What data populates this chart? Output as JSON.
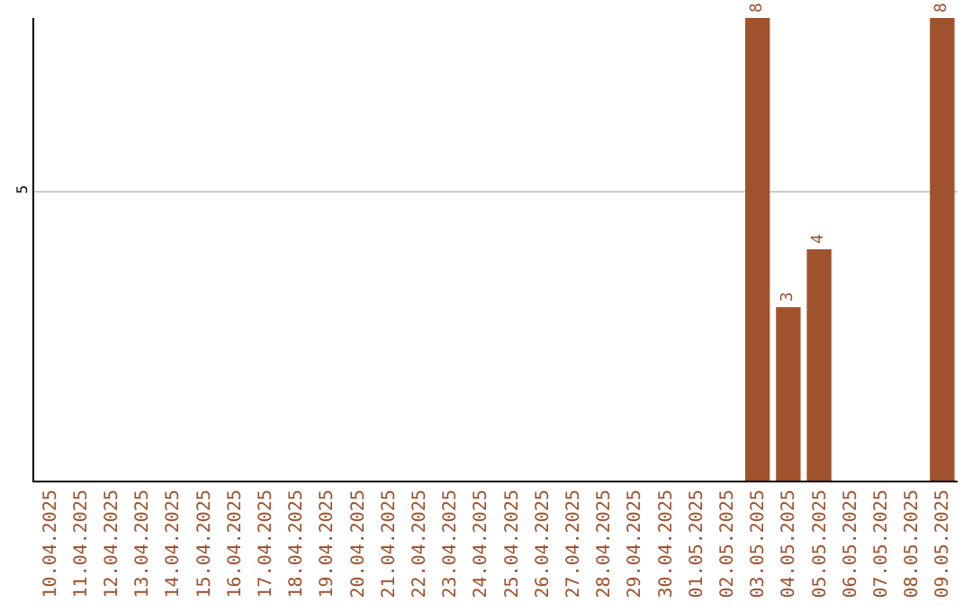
{
  "chart_data": {
    "type": "bar",
    "categories": [
      "10.04.2025",
      "11.04.2025",
      "12.04.2025",
      "13.04.2025",
      "14.04.2025",
      "15.04.2025",
      "16.04.2025",
      "17.04.2025",
      "18.04.2025",
      "19.04.2025",
      "20.04.2025",
      "21.04.2025",
      "22.04.2025",
      "23.04.2025",
      "24.04.2025",
      "25.04.2025",
      "26.04.2025",
      "27.04.2025",
      "28.04.2025",
      "29.04.2025",
      "30.04.2025",
      "01.05.2025",
      "02.05.2025",
      "03.05.2025",
      "04.05.2025",
      "05.05.2025",
      "06.05.2025",
      "07.05.2025",
      "08.05.2025",
      "09.05.2025"
    ],
    "values": [
      null,
      null,
      null,
      null,
      null,
      null,
      null,
      null,
      null,
      null,
      null,
      null,
      null,
      null,
      null,
      null,
      null,
      null,
      null,
      null,
      null,
      null,
      null,
      8,
      3,
      4,
      null,
      null,
      null,
      8
    ],
    "color": "#a0522d",
    "ylim": [
      0,
      8
    ],
    "yticks": [
      5
    ],
    "grid": "y",
    "data_labels": true
  }
}
